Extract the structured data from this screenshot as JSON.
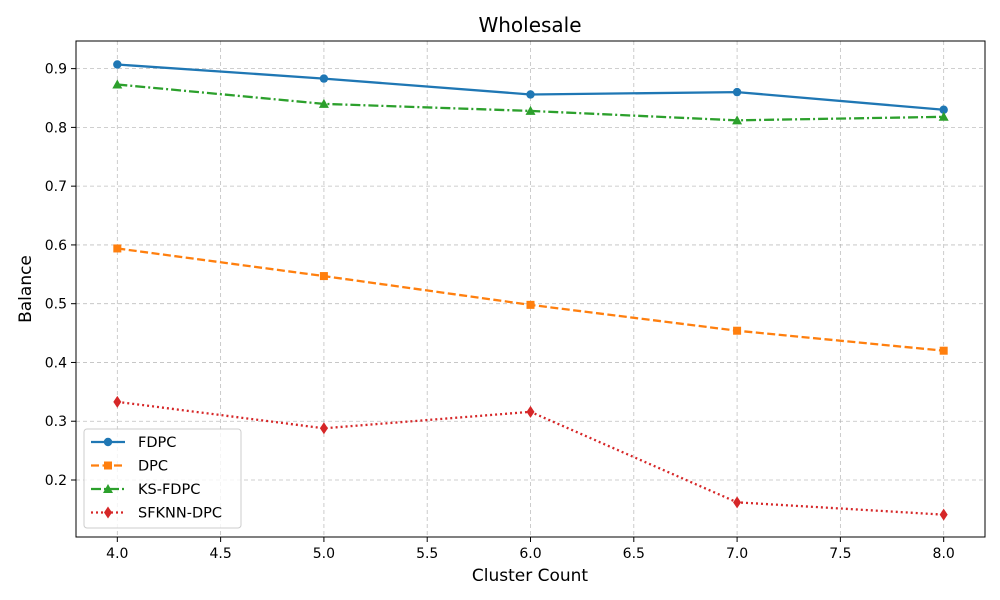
{
  "chart_data": {
    "type": "line",
    "title": "Wholesale",
    "xlabel": "Cluster Count",
    "ylabel": "Balance",
    "x": [
      4.0,
      5.0,
      6.0,
      7.0,
      8.0
    ],
    "xlim": [
      3.8,
      8.2
    ],
    "ylim": [
      0.103,
      0.947
    ],
    "xticks": [
      "4.0",
      "4.5",
      "5.0",
      "5.5",
      "6.0",
      "6.5",
      "7.0",
      "7.5",
      "8.0"
    ],
    "yticks": [
      "0.2",
      "0.3",
      "0.4",
      "0.5",
      "0.6",
      "0.7",
      "0.8",
      "0.9"
    ],
    "grid": true,
    "legend_position": "lower-left",
    "series": [
      {
        "name": "FDPC",
        "values": [
          0.907,
          0.883,
          0.856,
          0.86,
          0.83
        ],
        "color": "#1f77b4",
        "marker": "circle",
        "linestyle": "solid"
      },
      {
        "name": "DPC",
        "values": [
          0.594,
          0.547,
          0.498,
          0.454,
          0.42
        ],
        "color": "#ff7f0e",
        "marker": "square",
        "linestyle": "dashed"
      },
      {
        "name": "KS-FDPC",
        "values": [
          0.873,
          0.84,
          0.828,
          0.812,
          0.818
        ],
        "color": "#2ca02c",
        "marker": "triangle",
        "linestyle": "dashdot"
      },
      {
        "name": "SFKNN-DPC",
        "values": [
          0.333,
          0.288,
          0.316,
          0.162,
          0.141
        ],
        "color": "#d62728",
        "marker": "diamond",
        "linestyle": "dotted"
      }
    ]
  }
}
